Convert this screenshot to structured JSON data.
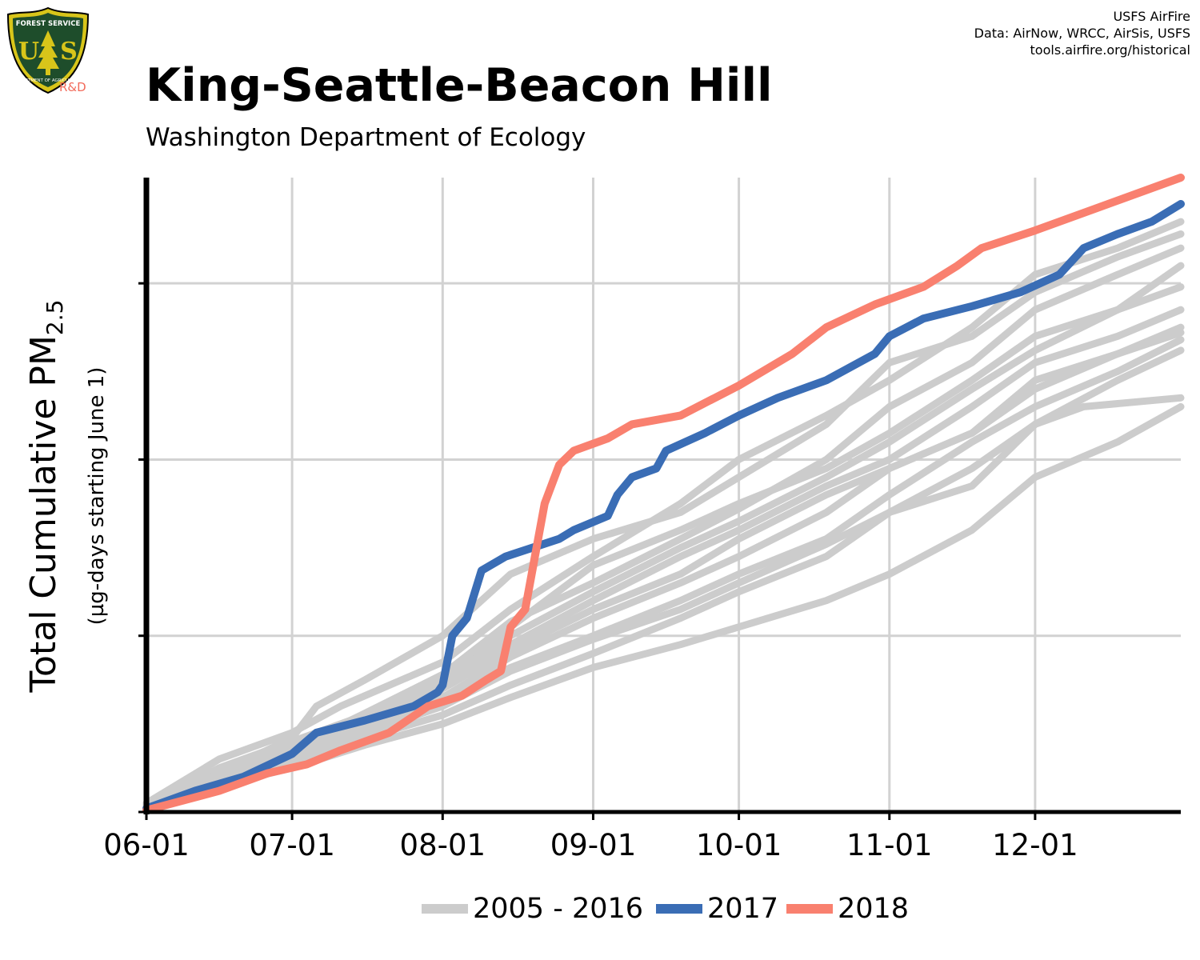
{
  "header": {
    "title": "King-Seattle-Beacon Hill",
    "subtitle": "Washington Department of Ecology",
    "credits": [
      "USFS AirFire",
      "Data: AirNow, WRCC, AirSis, USFS",
      "tools.airfire.org/historical"
    ]
  },
  "logo": {
    "top_text": "FOREST SERVICE",
    "letters": "USA",
    "bottom_text": "DEPARTMENT OF AGRICULTURE",
    "tag": "R&D",
    "colors": {
      "shield": "#1e4d2b",
      "rim": "#d8c51a",
      "tag": "#f26b5b"
    }
  },
  "chart_data": {
    "type": "line",
    "title": "King-Seattle-Beacon Hill",
    "subtitle": "Washington Department of Ecology",
    "ylabel_main": "Total Cumulative PM",
    "ylabel_sub": "2.5",
    "ylabel_note": "(µg-days starting June 1)",
    "x_ticks": [
      "06-01",
      "07-01",
      "08-01",
      "09-01",
      "10-01",
      "11-01",
      "12-01"
    ],
    "x_tick_days": [
      0,
      30,
      61,
      92,
      122,
      153,
      183
    ],
    "xlim_days": [
      0,
      213
    ],
    "ylim": [
      0,
      3.6
    ],
    "y_tick_values": [
      0,
      1,
      2,
      3
    ],
    "y_tick_labels": [
      "",
      "",
      "",
      ""
    ],
    "grid": true,
    "legend_position": "bottom",
    "legend": [
      "2005 - 2016",
      "2017",
      "2018"
    ],
    "series": [
      {
        "name": "2005 - 2016",
        "color": "#cccccc",
        "group": "background",
        "points": [
          [
            0,
            0.05
          ],
          [
            15,
            0.3
          ],
          [
            30,
            0.45
          ],
          [
            40,
            0.6
          ],
          [
            61,
            0.85
          ],
          [
            75,
            1.15
          ],
          [
            92,
            1.45
          ],
          [
            110,
            1.75
          ],
          [
            122,
            2.0
          ],
          [
            140,
            2.25
          ],
          [
            153,
            2.45
          ],
          [
            170,
            2.75
          ],
          [
            183,
            3.05
          ],
          [
            200,
            3.2
          ],
          [
            213,
            3.35
          ]
        ]
      },
      {
        "name": "2005 - 2016",
        "color": "#cccccc",
        "group": "background",
        "points": [
          [
            0,
            0.04
          ],
          [
            15,
            0.22
          ],
          [
            30,
            0.42
          ],
          [
            35,
            0.6
          ],
          [
            45,
            0.75
          ],
          [
            61,
            1.0
          ],
          [
            75,
            1.35
          ],
          [
            92,
            1.55
          ],
          [
            110,
            1.7
          ],
          [
            122,
            1.9
          ],
          [
            140,
            2.2
          ],
          [
            153,
            2.55
          ],
          [
            170,
            2.7
          ],
          [
            183,
            2.95
          ],
          [
            200,
            3.15
          ],
          [
            213,
            3.28
          ]
        ]
      },
      {
        "name": "2005 - 2016",
        "color": "#cccccc",
        "group": "background",
        "points": [
          [
            0,
            0.04
          ],
          [
            15,
            0.25
          ],
          [
            30,
            0.4
          ],
          [
            45,
            0.55
          ],
          [
            61,
            0.75
          ],
          [
            75,
            1.05
          ],
          [
            92,
            1.4
          ],
          [
            110,
            1.6
          ],
          [
            122,
            1.75
          ],
          [
            140,
            1.95
          ],
          [
            153,
            2.15
          ],
          [
            170,
            2.45
          ],
          [
            183,
            2.7
          ],
          [
            200,
            2.85
          ],
          [
            213,
            3.1
          ]
        ]
      },
      {
        "name": "2005 - 2016",
        "color": "#cccccc",
        "group": "background",
        "points": [
          [
            0,
            0.03
          ],
          [
            15,
            0.2
          ],
          [
            30,
            0.35
          ],
          [
            45,
            0.55
          ],
          [
            61,
            0.72
          ],
          [
            75,
            0.95
          ],
          [
            92,
            1.2
          ],
          [
            110,
            1.45
          ],
          [
            122,
            1.6
          ],
          [
            140,
            1.85
          ],
          [
            153,
            2.0
          ],
          [
            170,
            2.3
          ],
          [
            183,
            2.55
          ],
          [
            200,
            2.7
          ],
          [
            213,
            2.85
          ]
        ]
      },
      {
        "name": "2005 - 2016",
        "color": "#cccccc",
        "group": "background",
        "points": [
          [
            0,
            0.03
          ],
          [
            15,
            0.22
          ],
          [
            30,
            0.38
          ],
          [
            45,
            0.52
          ],
          [
            61,
            0.7
          ],
          [
            75,
            0.92
          ],
          [
            92,
            1.15
          ],
          [
            110,
            1.35
          ],
          [
            122,
            1.55
          ],
          [
            140,
            1.8
          ],
          [
            153,
            1.95
          ],
          [
            170,
            2.15
          ],
          [
            183,
            2.4
          ],
          [
            200,
            2.6
          ],
          [
            213,
            2.75
          ]
        ]
      },
      {
        "name": "2005 - 2016",
        "color": "#cccccc",
        "group": "background",
        "points": [
          [
            0,
            0.03
          ],
          [
            15,
            0.18
          ],
          [
            30,
            0.35
          ],
          [
            45,
            0.5
          ],
          [
            61,
            0.65
          ],
          [
            75,
            0.88
          ],
          [
            92,
            1.1
          ],
          [
            110,
            1.3
          ],
          [
            122,
            1.45
          ],
          [
            140,
            1.7
          ],
          [
            153,
            1.95
          ],
          [
            170,
            2.15
          ],
          [
            183,
            2.45
          ],
          [
            200,
            2.6
          ],
          [
            213,
            2.72
          ]
        ]
      },
      {
        "name": "2005 - 2016",
        "color": "#cccccc",
        "group": "background",
        "points": [
          [
            0,
            0.03
          ],
          [
            15,
            0.2
          ],
          [
            30,
            0.33
          ],
          [
            45,
            0.48
          ],
          [
            61,
            0.62
          ],
          [
            75,
            0.82
          ],
          [
            92,
            1.0
          ],
          [
            110,
            1.2
          ],
          [
            122,
            1.35
          ],
          [
            140,
            1.55
          ],
          [
            153,
            1.8
          ],
          [
            170,
            2.1
          ],
          [
            183,
            2.3
          ],
          [
            200,
            2.5
          ],
          [
            213,
            2.68
          ]
        ]
      },
      {
        "name": "2005 - 2016",
        "color": "#cccccc",
        "group": "background",
        "points": [
          [
            0,
            0.02
          ],
          [
            15,
            0.18
          ],
          [
            30,
            0.3
          ],
          [
            45,
            0.45
          ],
          [
            61,
            0.6
          ],
          [
            75,
            0.8
          ],
          [
            92,
            0.98
          ],
          [
            110,
            1.15
          ],
          [
            122,
            1.3
          ],
          [
            140,
            1.52
          ],
          [
            153,
            1.7
          ],
          [
            170,
            1.95
          ],
          [
            183,
            2.2
          ],
          [
            200,
            2.45
          ],
          [
            213,
            2.62
          ]
        ]
      },
      {
        "name": "2005 - 2016",
        "color": "#cccccc",
        "group": "background",
        "points": [
          [
            0,
            0.02
          ],
          [
            15,
            0.16
          ],
          [
            30,
            0.28
          ],
          [
            45,
            0.42
          ],
          [
            61,
            0.55
          ],
          [
            75,
            0.72
          ],
          [
            92,
            0.9
          ],
          [
            110,
            1.1
          ],
          [
            122,
            1.25
          ],
          [
            140,
            1.45
          ],
          [
            153,
            1.7
          ],
          [
            170,
            1.85
          ],
          [
            183,
            2.2
          ],
          [
            193,
            2.3
          ],
          [
            213,
            2.35
          ]
        ]
      },
      {
        "name": "2005 - 2016",
        "color": "#cccccc",
        "group": "background",
        "points": [
          [
            0,
            0.02
          ],
          [
            15,
            0.15
          ],
          [
            30,
            0.25
          ],
          [
            45,
            0.38
          ],
          [
            61,
            0.5
          ],
          [
            75,
            0.65
          ],
          [
            92,
            0.82
          ],
          [
            110,
            0.95
          ],
          [
            122,
            1.05
          ],
          [
            140,
            1.2
          ],
          [
            153,
            1.35
          ],
          [
            170,
            1.6
          ],
          [
            183,
            1.9
          ],
          [
            200,
            2.1
          ],
          [
            213,
            2.3
          ]
        ]
      },
      {
        "name": "2005 - 2016",
        "color": "#cccccc",
        "group": "background",
        "points": [
          [
            0,
            0.03
          ],
          [
            15,
            0.2
          ],
          [
            30,
            0.36
          ],
          [
            45,
            0.56
          ],
          [
            61,
            0.78
          ],
          [
            75,
            1.08
          ],
          [
            92,
            1.3
          ],
          [
            110,
            1.55
          ],
          [
            122,
            1.72
          ],
          [
            140,
            2.0
          ],
          [
            153,
            2.3
          ],
          [
            170,
            2.55
          ],
          [
            183,
            2.85
          ],
          [
            200,
            3.05
          ],
          [
            213,
            3.2
          ]
        ]
      },
      {
        "name": "2005 - 2016",
        "color": "#cccccc",
        "group": "background",
        "points": [
          [
            0,
            0.03
          ],
          [
            15,
            0.21
          ],
          [
            30,
            0.38
          ],
          [
            45,
            0.55
          ],
          [
            61,
            0.74
          ],
          [
            75,
            1.0
          ],
          [
            92,
            1.25
          ],
          [
            110,
            1.5
          ],
          [
            122,
            1.65
          ],
          [
            140,
            1.9
          ],
          [
            153,
            2.1
          ],
          [
            170,
            2.4
          ],
          [
            183,
            2.62
          ],
          [
            200,
            2.85
          ],
          [
            213,
            2.98
          ]
        ]
      },
      {
        "name": "2017",
        "color": "#3a6db5",
        "group": "highlight",
        "points": [
          [
            0,
            0.02
          ],
          [
            10,
            0.12
          ],
          [
            20,
            0.2
          ],
          [
            30,
            0.33
          ],
          [
            35,
            0.45
          ],
          [
            45,
            0.52
          ],
          [
            55,
            0.6
          ],
          [
            60,
            0.68
          ],
          [
            61,
            0.72
          ],
          [
            63,
            1.0
          ],
          [
            66,
            1.1
          ],
          [
            69,
            1.37
          ],
          [
            74,
            1.45
          ],
          [
            85,
            1.55
          ],
          [
            88,
            1.6
          ],
          [
            95,
            1.68
          ],
          [
            97,
            1.8
          ],
          [
            100,
            1.9
          ],
          [
            105,
            1.95
          ],
          [
            107,
            2.05
          ],
          [
            115,
            2.15
          ],
          [
            122,
            2.25
          ],
          [
            130,
            2.35
          ],
          [
            140,
            2.45
          ],
          [
            150,
            2.6
          ],
          [
            153,
            2.7
          ],
          [
            160,
            2.8
          ],
          [
            170,
            2.87
          ],
          [
            180,
            2.95
          ],
          [
            188,
            3.05
          ],
          [
            193,
            3.2
          ],
          [
            200,
            3.28
          ],
          [
            207,
            3.35
          ],
          [
            213,
            3.45
          ]
        ]
      },
      {
        "name": "2018",
        "color": "#f9806f",
        "group": "highlight",
        "points": [
          [
            0,
            0.01
          ],
          [
            15,
            0.12
          ],
          [
            25,
            0.22
          ],
          [
            33,
            0.27
          ],
          [
            40,
            0.35
          ],
          [
            50,
            0.45
          ],
          [
            58,
            0.6
          ],
          [
            65,
            0.66
          ],
          [
            70,
            0.75
          ],
          [
            73,
            0.8
          ],
          [
            75,
            1.05
          ],
          [
            78,
            1.15
          ],
          [
            82,
            1.75
          ],
          [
            85,
            1.97
          ],
          [
            88,
            2.05
          ],
          [
            95,
            2.12
          ],
          [
            100,
            2.2
          ],
          [
            110,
            2.25
          ],
          [
            122,
            2.42
          ],
          [
            133,
            2.6
          ],
          [
            140,
            2.75
          ],
          [
            150,
            2.88
          ],
          [
            160,
            2.98
          ],
          [
            167,
            3.1
          ],
          [
            172,
            3.2
          ],
          [
            183,
            3.3
          ],
          [
            195,
            3.42
          ],
          [
            213,
            3.6
          ]
        ]
      }
    ]
  }
}
